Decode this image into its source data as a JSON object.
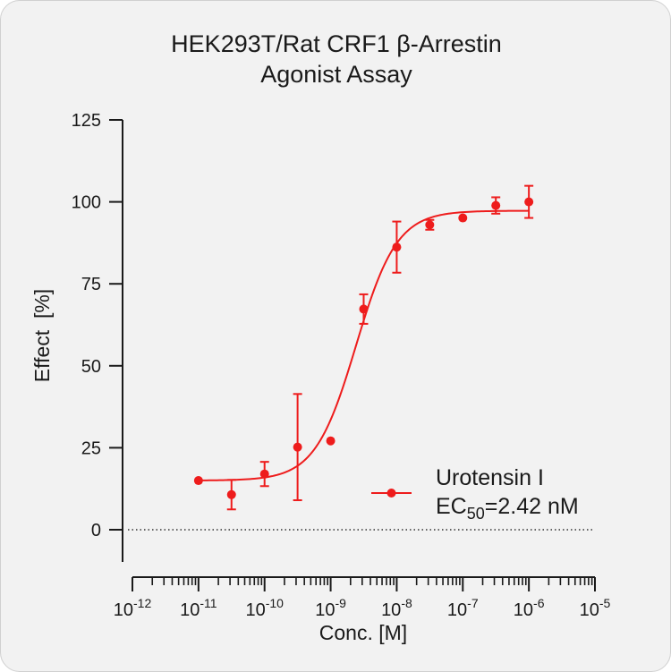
{
  "chart_data": {
    "type": "scatter",
    "title_line1": "HEK293T/Rat CRF1 β-Arrestin",
    "title_line2": "Agonist Assay",
    "xlabel": "Conc. [M]",
    "ylabel": "Effect  [%]",
    "x_scale": "log",
    "xlim": [
      1e-12,
      1e-05
    ],
    "ylim": [
      0,
      125
    ],
    "y_ticks": [
      0,
      25,
      50,
      75,
      100,
      125
    ],
    "x_tick_exponents": [
      -12,
      -11,
      -10,
      -9,
      -8,
      -7,
      -6,
      -5
    ],
    "x_tick_base": "10",
    "reference_line": {
      "y": 0,
      "style": "dotted"
    },
    "legend_position": "bottom-right",
    "series": [
      {
        "name": "Urotensin I",
        "color": "#ee1c1c",
        "points": [
          {
            "x": 1e-11,
            "y": 15.0,
            "err": 0
          },
          {
            "x": 3.16e-11,
            "y": 10.7,
            "err": 4.5
          },
          {
            "x": 1e-10,
            "y": 17.0,
            "err": 3.7
          },
          {
            "x": 3.16e-10,
            "y": 25.2,
            "err": 16.2
          },
          {
            "x": 1e-09,
            "y": 27.1,
            "err": 0
          },
          {
            "x": 3.16e-09,
            "y": 67.3,
            "err": 4.5
          },
          {
            "x": 1e-08,
            "y": 86.2,
            "err": 7.8
          },
          {
            "x": 3.16e-08,
            "y": 93.0,
            "err": 1.5
          },
          {
            "x": 1e-07,
            "y": 95.1,
            "err": 0
          },
          {
            "x": 3.16e-07,
            "y": 98.9,
            "err": 2.5
          },
          {
            "x": 1e-06,
            "y": 100.0,
            "err": 4.9
          }
        ],
        "fit": {
          "bottom": 15.0,
          "top": 97.3,
          "ec50": 2.42e-09,
          "hill": 1.4
        }
      }
    ],
    "legend": {
      "label": "Urotensin I",
      "ec50_prefix": "EC",
      "ec50_sub": "50",
      "ec50_value": "=2.42 nM"
    }
  }
}
